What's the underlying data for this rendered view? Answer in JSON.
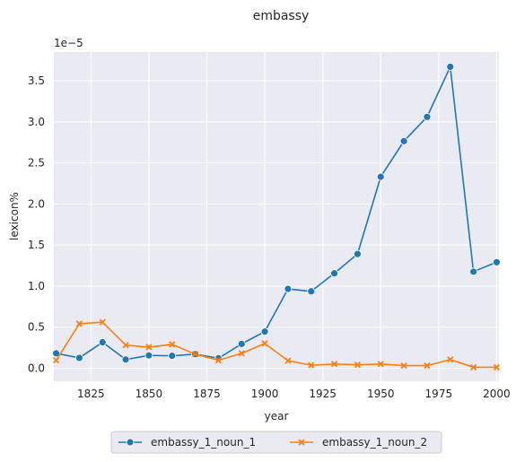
{
  "chart_data": {
    "type": "line",
    "title": "embassy",
    "xlabel": "year",
    "ylabel": "lexicon%",
    "offset_text": "1e−5",
    "xlim": [
      1809,
      2001
    ],
    "ylim": [
      -1.6e-06,
      3.85e-05
    ],
    "grid": true,
    "legend_position": "bottom-center",
    "x_ticks": [
      1825,
      1850,
      1875,
      1900,
      1925,
      1950,
      1975,
      2000
    ],
    "y_ticks": [
      0.0,
      0.5,
      1.0,
      1.5,
      2.0,
      2.5,
      3.0,
      3.5
    ],
    "y_tick_labels": [
      "0.0",
      "0.5",
      "1.0",
      "1.5",
      "2.0",
      "2.5",
      "3.0",
      "3.5"
    ],
    "x": [
      1810,
      1820,
      1830,
      1840,
      1850,
      1860,
      1870,
      1880,
      1890,
      1900,
      1910,
      1920,
      1930,
      1940,
      1950,
      1960,
      1970,
      1980,
      1990,
      2000
    ],
    "series": [
      {
        "name": "embassy_1_noun_1",
        "color": "#1f77b4",
        "marker": "circle",
        "values": [
          1.8e-06,
          1.25e-06,
          3.15e-06,
          1.05e-06,
          1.55e-06,
          1.5e-06,
          1.7e-06,
          1.2e-06,
          2.95e-06,
          4.45e-06,
          9.65e-06,
          9.35e-06,
          1.155e-05,
          1.39e-05,
          2.33e-05,
          2.765e-05,
          3.06e-05,
          3.67e-05,
          1.175e-05,
          1.29e-05
        ]
      },
      {
        "name": "embassy_1_noun_2",
        "color": "#ff7f0e",
        "marker": "x",
        "values": [
          9.5e-07,
          5.4e-06,
          5.6e-06,
          2.8e-06,
          2.55e-06,
          2.9e-06,
          1.7e-06,
          9.5e-07,
          1.8e-06,
          3e-06,
          9e-07,
          3.5e-07,
          5e-07,
          4e-07,
          5e-07,
          3e-07,
          3e-07,
          1.05e-06,
          1e-07,
          1e-07
        ]
      }
    ]
  }
}
